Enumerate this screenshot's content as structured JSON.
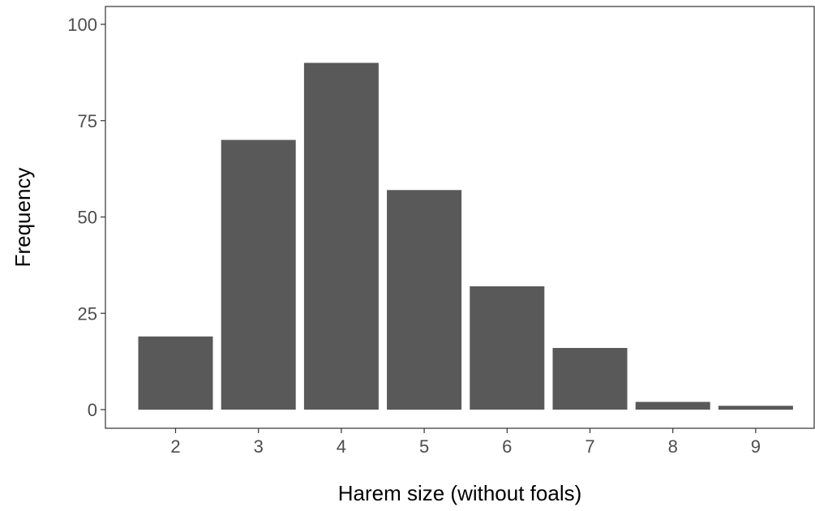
{
  "chart_data": {
    "type": "bar",
    "categories": [
      "2",
      "3",
      "4",
      "5",
      "6",
      "7",
      "8",
      "9"
    ],
    "values": [
      19,
      70,
      90,
      57,
      32,
      16,
      2,
      1
    ],
    "xlabel": "Harem size (without foals)",
    "ylabel": "Frequency",
    "ylim": [
      0,
      100
    ],
    "yticks": [
      "0",
      "25",
      "50",
      "75",
      "100"
    ],
    "grid": false,
    "bar_color": "#595959",
    "frame_color": "#333333"
  }
}
